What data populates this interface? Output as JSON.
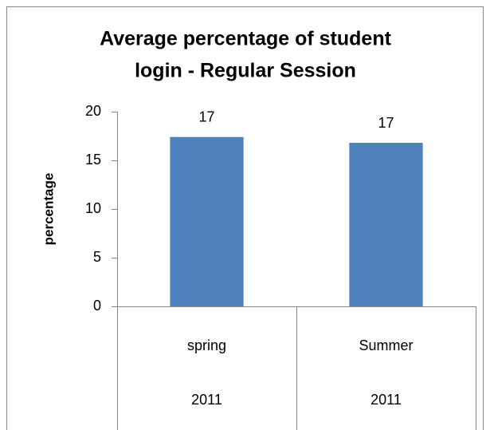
{
  "chart_data": {
    "type": "bar",
    "title": [
      "Average percentage of student",
      "login - Regular Session"
    ],
    "y_label": "percentage",
    "categories": [
      [
        "spring",
        "2011"
      ],
      [
        "Summer",
        "2011"
      ]
    ],
    "values": [
      17.4,
      16.8
    ],
    "value_labels": [
      "17",
      "17"
    ],
    "color": "#4f81bd",
    "ylim": [
      0,
      20
    ],
    "yticks": [
      0,
      5,
      10,
      15,
      20
    ],
    "grid": false
  }
}
